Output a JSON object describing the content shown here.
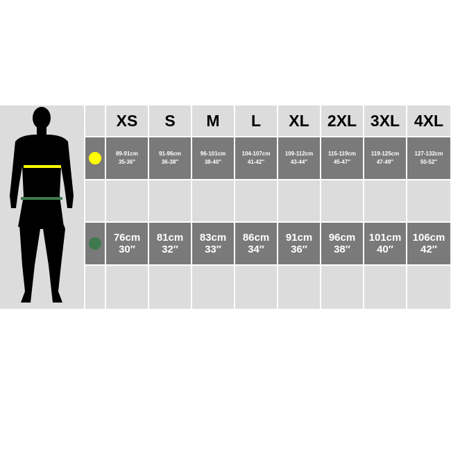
{
  "sizes": [
    "XS",
    "S",
    "M",
    "L",
    "XL",
    "2XL",
    "3XL",
    "4XL"
  ],
  "chest": {
    "marker_color": "#ffff00",
    "cm": [
      "89-91cm",
      "91-96cm",
      "96-101cm",
      "104-107cm",
      "109-112cm",
      "115-119cm",
      "119-125cm",
      "127-132cm"
    ],
    "inch": [
      "35-36″",
      "36-38″",
      "38-40″",
      "41-42″",
      "43-44″",
      "45-47″",
      "47-49″",
      "50-52″"
    ]
  },
  "waist": {
    "marker_color": "#3f7a4f",
    "cm": [
      "76cm",
      "81cm",
      "83cm",
      "86cm",
      "91cm",
      "96cm",
      "101cm",
      "106cm"
    ],
    "inch": [
      "30″",
      "32″",
      "33″",
      "34″",
      "36″",
      "38″",
      "40″",
      "42″"
    ]
  },
  "colors": {
    "dark_row": "#7a7a7a",
    "light_row": "#dcdcdc"
  }
}
